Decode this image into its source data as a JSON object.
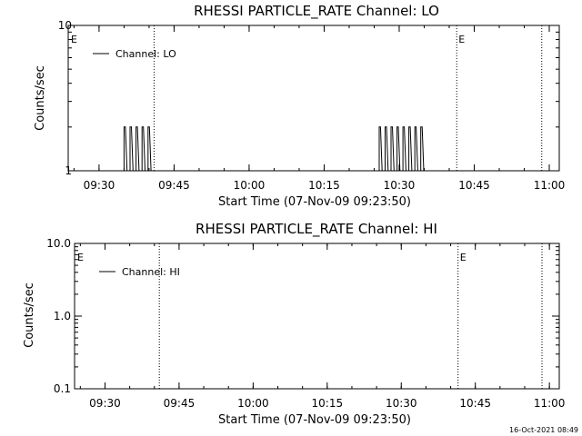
{
  "footer_timestamp": "16-Oct-2021 08:49",
  "chart_data": [
    {
      "type": "line",
      "title": "RHESSI PARTICLE_RATE Channel: LO",
      "xlabel": "Start Time (07-Nov-09 09:23:50)",
      "ylabel": "Counts/sec",
      "y_scale": "log",
      "ylim": [
        1,
        10
      ],
      "y_ticks": [
        "1",
        "10"
      ],
      "x_range": [
        "09:23:50",
        "11:02:00"
      ],
      "x_ticks": [
        "09:30",
        "09:45",
        "10:00",
        "10:15",
        "10:30",
        "10:45",
        "11:00"
      ],
      "legend_position": "top-left",
      "event_markers": [
        {
          "time": "09:23:50",
          "label": "E"
        },
        {
          "time": "10:41:30",
          "label": "E"
        }
      ],
      "dotted_lines": [
        "09:41:00",
        "10:41:30",
        "10:58:30"
      ],
      "series": [
        {
          "name": "Channel: LO",
          "color": "#000000",
          "bursts": [
            {
              "start": "09:35:00",
              "end": "09:41:00",
              "high_value": 2
            },
            {
              "start": "10:26:00",
              "end": "10:35:30",
              "high_value": 2
            }
          ]
        }
      ]
    },
    {
      "type": "line",
      "title": "RHESSI PARTICLE_RATE Channel: HI",
      "xlabel": "Start Time (07-Nov-09 09:23:50)",
      "ylabel": "Counts/sec",
      "y_scale": "log",
      "ylim": [
        0.1,
        10
      ],
      "y_ticks": [
        "0.1",
        "1.0",
        "10.0"
      ],
      "x_range": [
        "09:23:50",
        "11:02:00"
      ],
      "x_ticks": [
        "09:30",
        "09:45",
        "10:00",
        "10:15",
        "10:30",
        "10:45",
        "11:00"
      ],
      "legend_position": "top-left",
      "event_markers": [
        {
          "time": "09:23:50",
          "label": "E"
        },
        {
          "time": "10:41:30",
          "label": "E"
        }
      ],
      "dotted_lines": [
        "09:41:00",
        "10:41:30",
        "10:58:30"
      ],
      "series": [
        {
          "name": "Channel: HI",
          "color": "#000000",
          "bursts": []
        }
      ]
    }
  ]
}
